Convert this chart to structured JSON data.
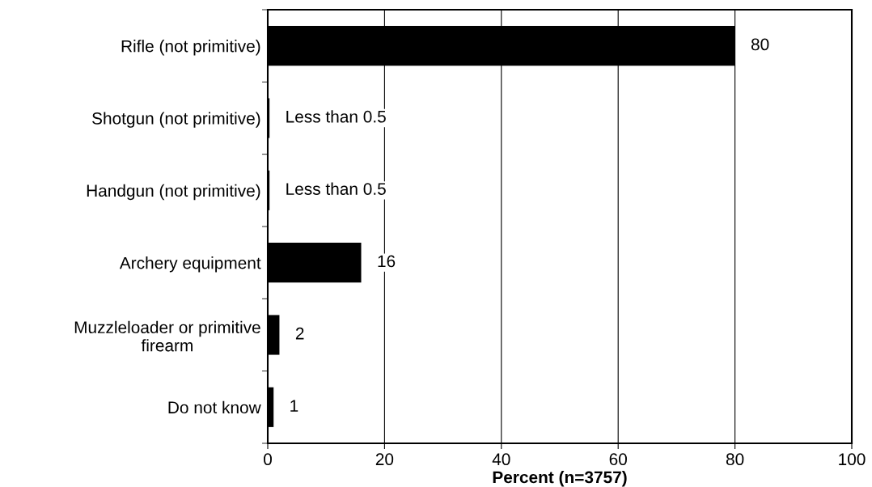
{
  "chart_data": {
    "type": "bar",
    "orientation": "horizontal",
    "xlabel": "Percent (n=3757)",
    "categories": [
      "Rifle (not primitive)",
      "Shotgun (not primitive)",
      "Handgun (not primitive)",
      "Archery equipment",
      "Muzzleloader or primitive firearm",
      "Do not know"
    ],
    "values": [
      80,
      0.3,
      0.3,
      16,
      2,
      1
    ],
    "value_labels": [
      "80",
      "Less than 0.5",
      "Less than 0.5",
      "16",
      "2",
      "1"
    ],
    "color": "#000000",
    "xlim": [
      0,
      100
    ],
    "xticks": [
      0,
      20,
      40,
      60,
      80,
      100
    ],
    "grid": "x"
  }
}
